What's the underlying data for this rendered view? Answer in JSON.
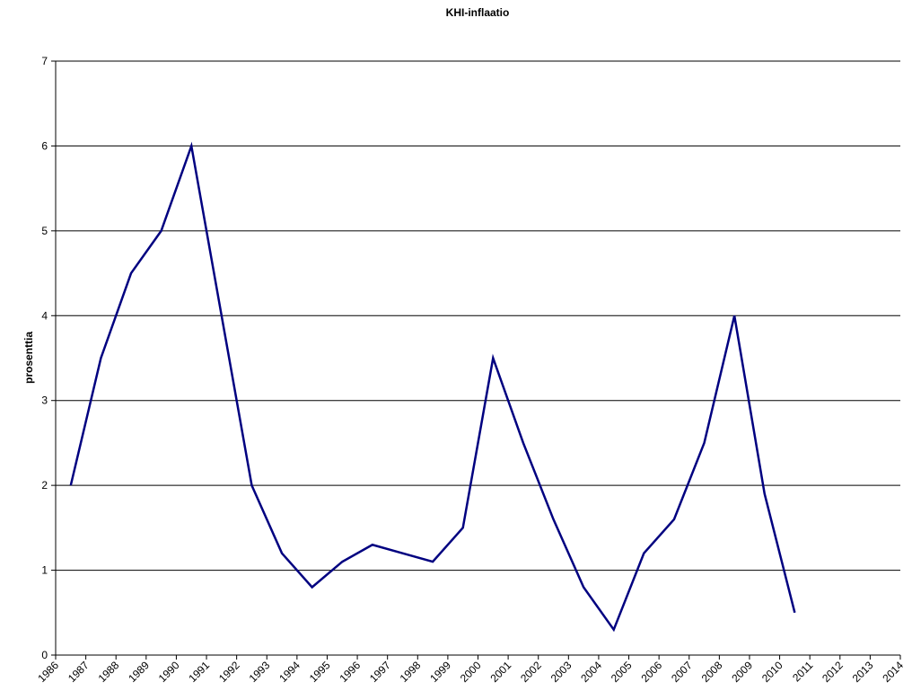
{
  "chart_data": {
    "type": "line",
    "title": "KHI-inflaatio",
    "y_label": "prosenttia",
    "x": [
      1986.5,
      1987.5,
      1988.5,
      1989.5,
      1990.5,
      1991.5,
      1992.5,
      1993.5,
      1994.5,
      1995.5,
      1996.5,
      1997.5,
      1998.5,
      1999.5,
      2000.5,
      2001.5,
      2002.5,
      2003.5,
      2004.5,
      2005.5,
      2006.5,
      2007.5,
      2008.5,
      2009.5,
      2010.5
    ],
    "series": [
      {
        "name": "KHI-inflaatio",
        "color": "#000080",
        "values": [
          2,
          3.5,
          4.5,
          5,
          6,
          4,
          2,
          1.2,
          0.8,
          1.1,
          1.3,
          1.2,
          1.1,
          1.5,
          3.5,
          2.5,
          1.6,
          0.8,
          0.3,
          1.2,
          1.6,
          2.5,
          4,
          1.9,
          0.5
        ]
      }
    ],
    "xlim": [
      1986,
      2014
    ],
    "xticks": [
      1986,
      1987,
      1988,
      1989,
      1990,
      1991,
      1992,
      1993,
      1994,
      1995,
      1996,
      1997,
      1998,
      1999,
      2000,
      2001,
      2002,
      2003,
      2004,
      2005,
      2006,
      2007,
      2008,
      2009,
      2010,
      2011,
      2012,
      2013,
      2014
    ],
    "ylim": [
      0,
      7
    ],
    "yticks": [
      0,
      1,
      2,
      3,
      4,
      5,
      6,
      7
    ],
    "grid": true
  }
}
